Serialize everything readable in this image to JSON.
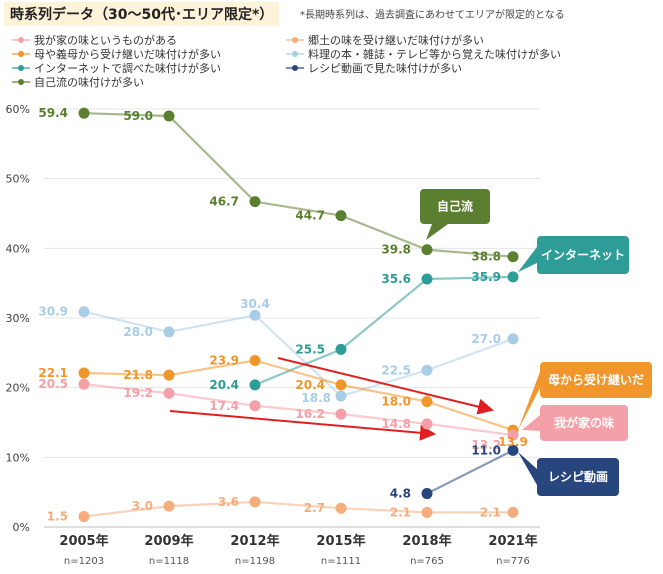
{
  "title": "時系列データ（30〜50代･エリア限定*）",
  "note": "*長期時系列は、過去調査にあわせてエリアが限定的となる",
  "colors": {
    "wagaya": "#f4a0a8",
    "kyodo": "#f5ad7e",
    "hahaoya": "#f0962a",
    "ryori": "#a9cde6",
    "internet": "#2e9c97",
    "recipe": "#27467e",
    "jikoryu": "#5b7f30"
  },
  "chart_data": {
    "type": "line",
    "categories": [
      "2005年",
      "2009年",
      "2012年",
      "2015年",
      "2018年",
      "2021年"
    ],
    "sample_sizes": [
      "n=1203",
      "n=1118",
      "n=1198",
      "n=1111",
      "n=765",
      "n=776"
    ],
    "ylim": [
      0,
      60
    ],
    "yticks": [
      "0%",
      "10%",
      "20%",
      "30%",
      "40%",
      "50%",
      "60%"
    ],
    "series": [
      {
        "key": "jikoryu",
        "name": "自己流の味付けが多い",
        "values": [
          59.4,
          59.0,
          46.7,
          44.7,
          39.8,
          38.8
        ]
      },
      {
        "key": "ryori",
        "name": "料理の本・雑誌・テレビ等から覚えた味付けが多い",
        "values": [
          30.9,
          28.0,
          30.4,
          18.8,
          22.5,
          27.0
        ]
      },
      {
        "key": "internet",
        "name": "インターネットで調べた味付けが多い",
        "values": [
          null,
          null,
          20.4,
          25.5,
          35.6,
          35.9
        ]
      },
      {
        "key": "hahaoya",
        "name": "母や義母から受け継いだ味付けが多い",
        "values": [
          22.1,
          21.8,
          23.9,
          20.4,
          18.0,
          13.9
        ]
      },
      {
        "key": "wagaya",
        "name": "我が家の味というものがある",
        "values": [
          20.5,
          19.2,
          17.4,
          16.2,
          14.8,
          13.2
        ]
      },
      {
        "key": "recipe",
        "name": "レシピ動画で見た味付けが多い",
        "values": [
          null,
          null,
          null,
          null,
          4.8,
          11.0
        ]
      },
      {
        "key": "kyodo",
        "name": "郷土の味を受け継いだ味付けが多い",
        "values": [
          1.5,
          3.0,
          3.6,
          2.7,
          2.1,
          2.1
        ]
      }
    ],
    "callouts": [
      {
        "key": "jikoryu",
        "text": "自己流"
      },
      {
        "key": "internet",
        "text": "インターネット"
      },
      {
        "key": "hahaoya",
        "text": "母から受け継いだ"
      },
      {
        "key": "wagaya",
        "text": "我が家の味"
      },
      {
        "key": "recipe",
        "text": "レシピ動画"
      }
    ]
  },
  "legend": [
    {
      "key": "wagaya",
      "label": "我が家の味というものがある"
    },
    {
      "key": "kyodo",
      "label": "郷土の味を受け継いだ味付けが多い"
    },
    {
      "key": "hahaoya",
      "label": "母や義母から受け継いだ味付けが多い"
    },
    {
      "key": "ryori",
      "label": "料理の本・雑誌・テレビ等から覚えた味付けが多い"
    },
    {
      "key": "internet",
      "label": "インターネットで調べた味付けが多い"
    },
    {
      "key": "recipe",
      "label": "レシピ動画で見た味付けが多い"
    },
    {
      "key": "jikoryu",
      "label": "自己流の味付けが多い"
    }
  ]
}
